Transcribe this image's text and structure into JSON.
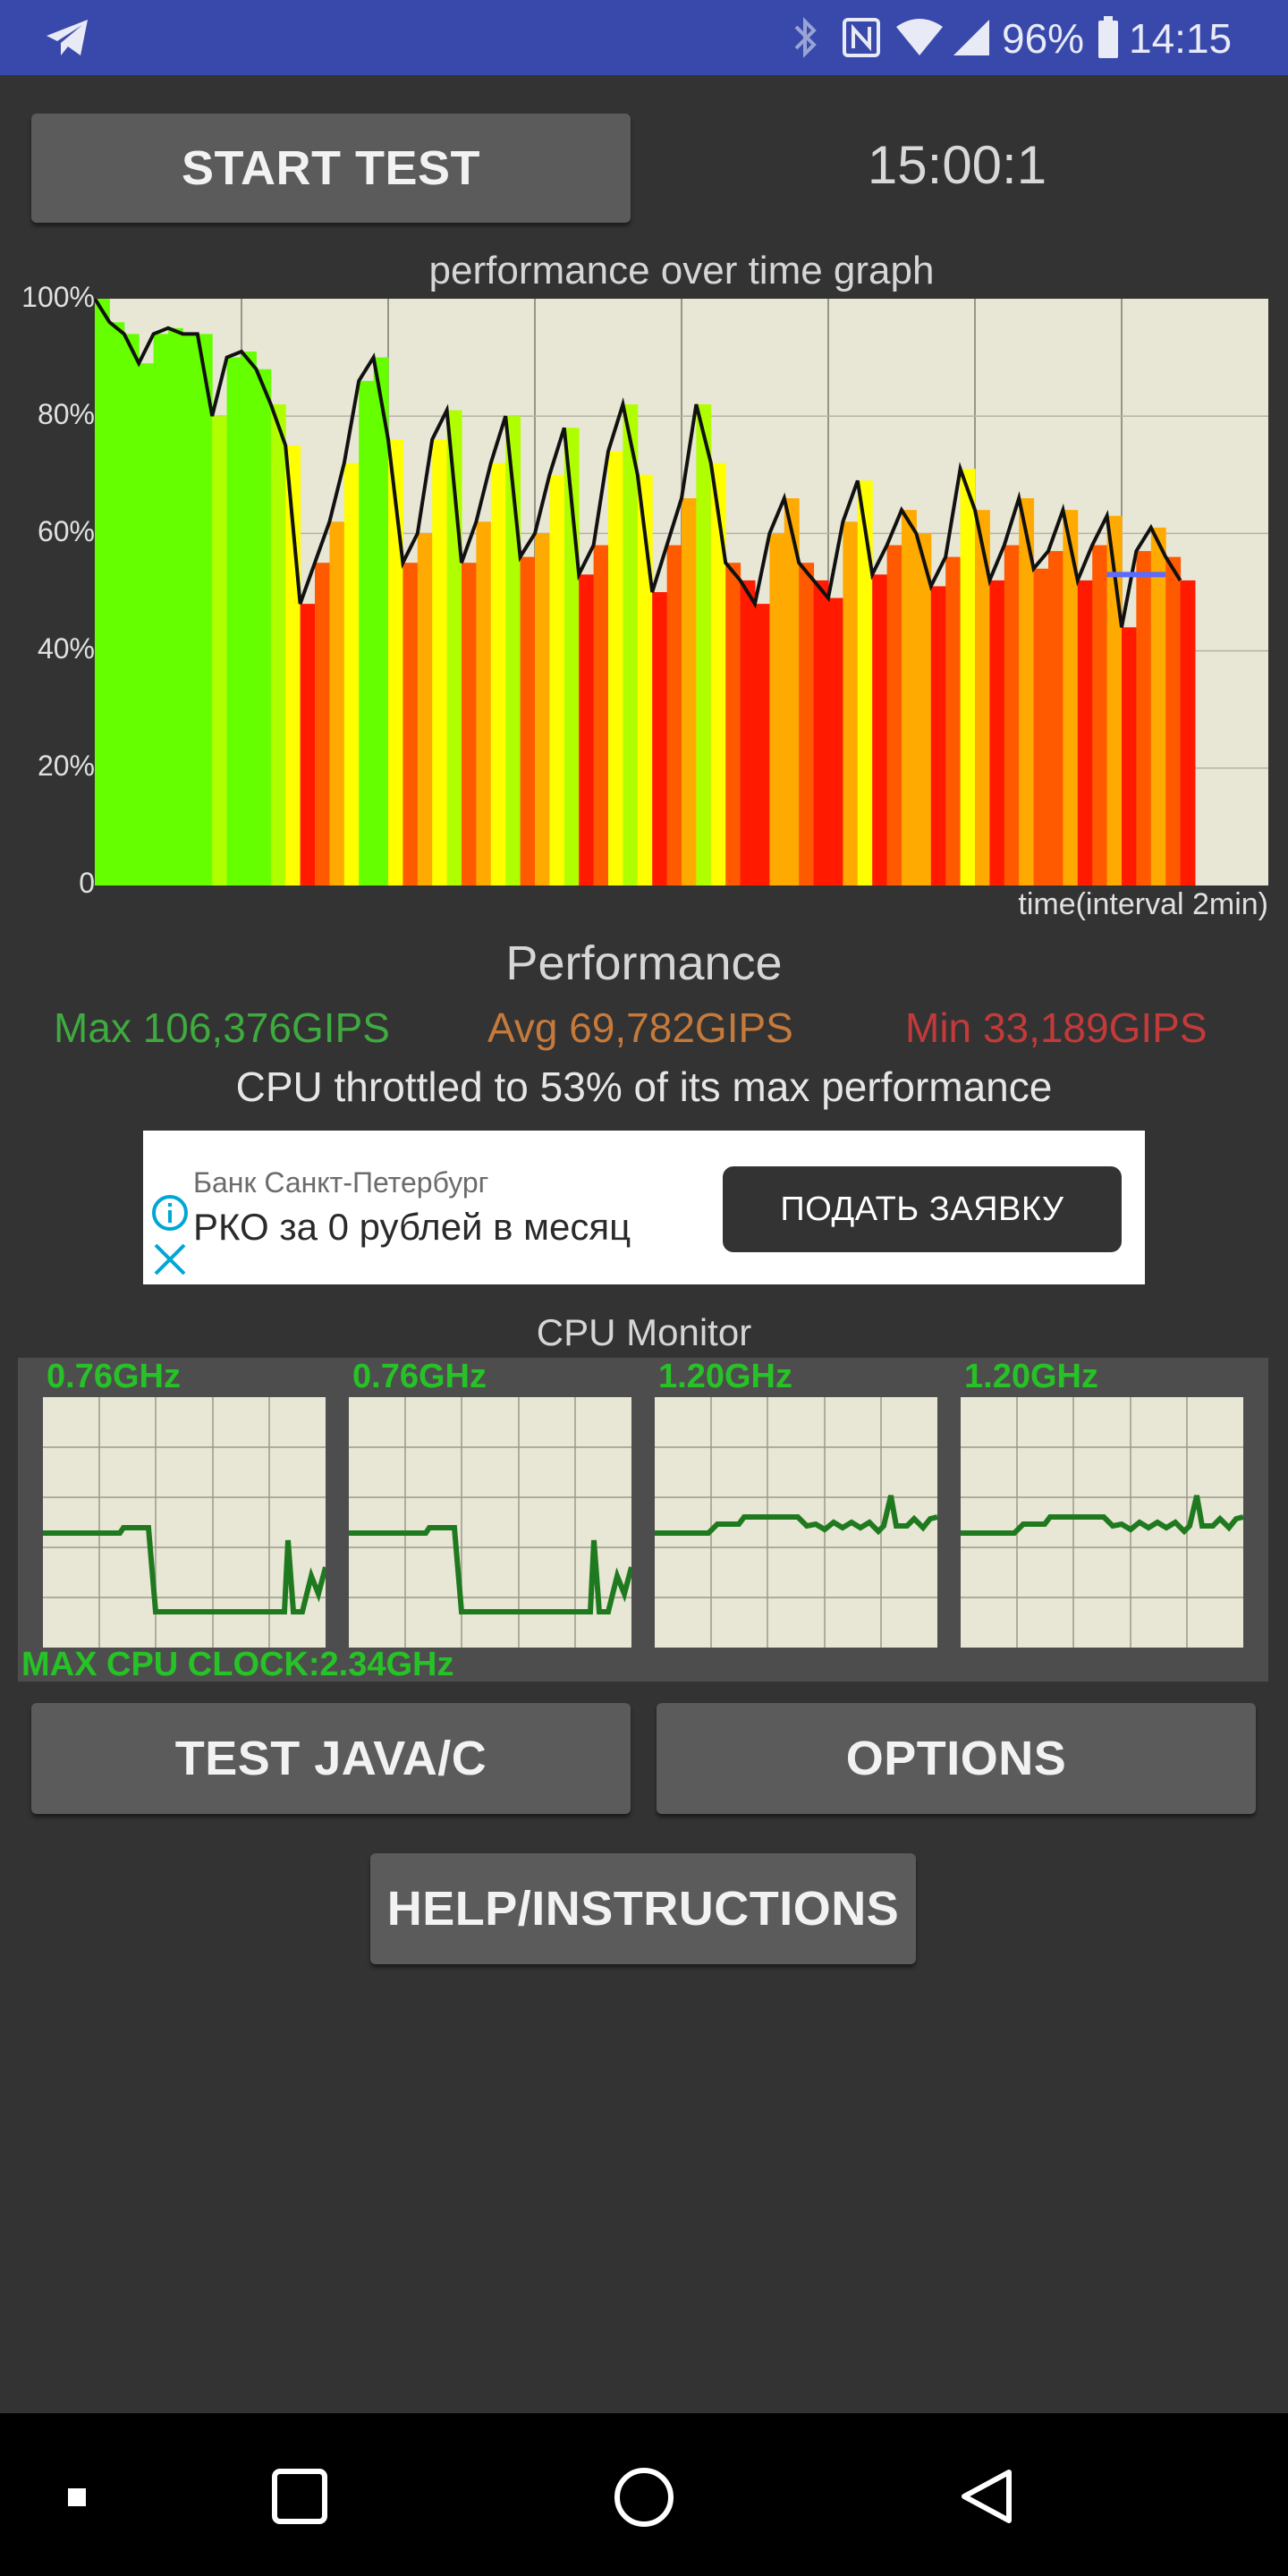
{
  "status_bar": {
    "icons": [
      "telegram-icon",
      "bluetooth-icon",
      "nfc-icon",
      "wifi-icon",
      "cellular-signal-icon",
      "battery-icon"
    ],
    "battery": "96%",
    "time": "14:15"
  },
  "controls": {
    "start_label": "START TEST",
    "timer": "15:00:1"
  },
  "graph": {
    "title": "performance over time graph",
    "y_ticks": [
      "100%",
      "80%",
      "60%",
      "40%",
      "20%",
      "0"
    ],
    "x_label": "time(interval 2min)"
  },
  "chart_data": {
    "type": "area",
    "title": "performance over time graph",
    "xlabel": "time(interval 2min)",
    "ylabel": "",
    "ylim": [
      0,
      100
    ],
    "x_tick_interval": "2min",
    "grid": true,
    "x": [
      0,
      0.1,
      0.2,
      0.3,
      0.4,
      0.5,
      0.6,
      0.7,
      0.8,
      0.9,
      1.0,
      1.1,
      1.2,
      1.3,
      1.4,
      1.5,
      1.6,
      1.7,
      1.8,
      1.9,
      2.0,
      2.1,
      2.2,
      2.3,
      2.4,
      2.5,
      2.6,
      2.7,
      2.8,
      2.9,
      3.0,
      3.1,
      3.2,
      3.3,
      3.4,
      3.5,
      3.6,
      3.7,
      3.8,
      3.9,
      4.0,
      4.1,
      4.2,
      4.3,
      4.4,
      4.5,
      4.6,
      4.7,
      4.8,
      4.9,
      5.0,
      5.1,
      5.2,
      5.3,
      5.4,
      5.5,
      5.6,
      5.7,
      5.8,
      5.9,
      6.0,
      6.1,
      6.2,
      6.3,
      6.4,
      6.5,
      6.6,
      6.7,
      6.8,
      6.9,
      7.0,
      7.1,
      7.2,
      7.3,
      7.4
    ],
    "series": [
      {
        "values": [
          100,
          96,
          94,
          89,
          94,
          95,
          94,
          94,
          80,
          90,
          91,
          88,
          82,
          75,
          48,
          55,
          62,
          72,
          86,
          90,
          76,
          55,
          60,
          76,
          81,
          55,
          62,
          72,
          80,
          56,
          60,
          70,
          78,
          53,
          58,
          74,
          82,
          70,
          50,
          58,
          66,
          82,
          72,
          55,
          52,
          48,
          60,
          66,
          55,
          52,
          49,
          62,
          69,
          53,
          58,
          64,
          60,
          51,
          56,
          71,
          64,
          52,
          58,
          66,
          54,
          57,
          64,
          52,
          58,
          63,
          44,
          57,
          61,
          56,
          52
        ],
        "color_scale": [
          "#66ff00",
          "#ffff00",
          "#ff0000"
        ]
      }
    ],
    "reference_line": {
      "y": 53,
      "x_from": 6.9,
      "x_to": 7.3,
      "color": "#5a6bff"
    }
  },
  "performance": {
    "title": "Performance",
    "max": "Max 106,376GIPS",
    "avg": "Avg 69,782GIPS",
    "min": "Min 33,189GIPS",
    "throttle": "CPU throttled to 53% of its max performance",
    "colors": {
      "max": "#3faa3f",
      "avg": "#c57a3c",
      "min": "#c23a3a"
    }
  },
  "ad": {
    "bank": "Банк Санкт-Петербург",
    "title": "РКО за 0 рублей в месяц",
    "button": "ПОДАТЬ ЗАЯВКУ",
    "icons": [
      "info-icon",
      "close-icon"
    ]
  },
  "cpu_monitor": {
    "title": "CPU Monitor",
    "cores": [
      {
        "freq": "0.76GHz"
      },
      {
        "freq": "0.76GHz"
      },
      {
        "freq": "1.20GHz"
      },
      {
        "freq": "1.20GHz"
      }
    ],
    "max_clock": "MAX CPU CLOCK:2.34GHz",
    "line_color": "#1f7a1f"
  },
  "buttons": {
    "test_java": "TEST JAVA/C",
    "options": "OPTIONS",
    "help": "HELP/INSTRUCTIONS"
  },
  "nav": {
    "icons": [
      "menu-dot-icon",
      "recents-icon",
      "home-icon",
      "back-icon"
    ]
  }
}
